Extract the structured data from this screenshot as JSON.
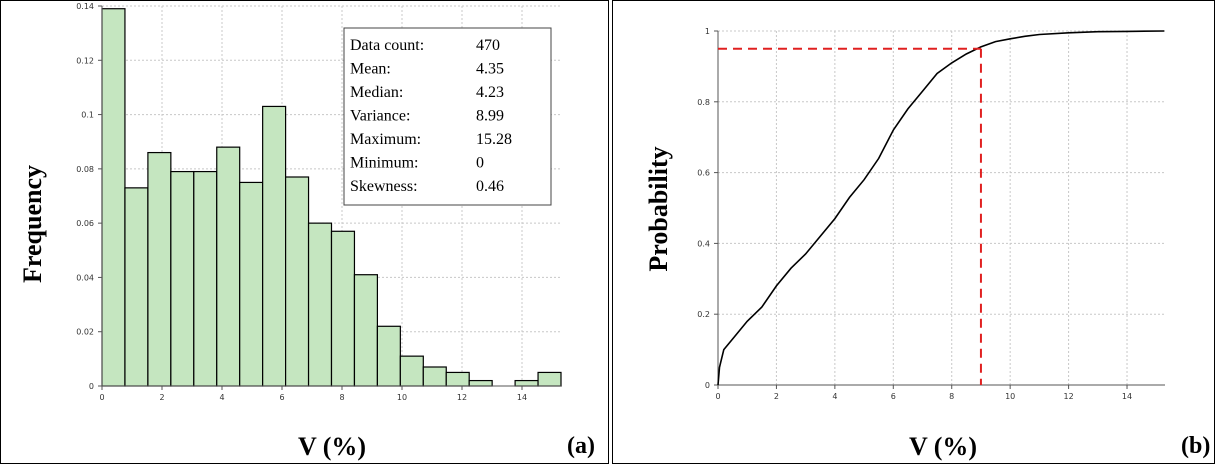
{
  "chart_data": [
    {
      "type": "bar",
      "panel_label": "(a)",
      "xlabel": "V (%)",
      "ylabel": "Frequency",
      "xlim": [
        0,
        15.3
      ],
      "ylim": [
        0,
        0.14
      ],
      "x_ticks": [
        "0",
        "2",
        "4",
        "6",
        "8",
        "10",
        "12",
        "14"
      ],
      "y_ticks": [
        "0",
        "0.02",
        "0.04",
        "0.06",
        "0.08",
        "0.1",
        "0.12",
        "0.14"
      ],
      "grid": true,
      "bin_width": 0.765,
      "bin_starts": [
        0,
        0.765,
        1.53,
        2.295,
        3.06,
        3.825,
        4.59,
        5.355,
        6.12,
        6.885,
        7.65,
        8.415,
        9.18,
        9.945,
        10.71,
        11.475,
        12.24,
        13.005,
        13.77,
        14.535
      ],
      "values": [
        0.139,
        0.073,
        0.086,
        0.079,
        0.079,
        0.088,
        0.075,
        0.103,
        0.077,
        0.06,
        0.057,
        0.041,
        0.022,
        0.011,
        0.007,
        0.005,
        0.002,
        0,
        0.002,
        0.005
      ],
      "bar_color": "#c5e6c0",
      "stats_box": {
        "position": "top-right",
        "rows": [
          {
            "label": "Data count:",
            "value": "470"
          },
          {
            "label": "Mean:",
            "value": "4.35"
          },
          {
            "label": "Median:",
            "value": "4.23"
          },
          {
            "label": "Variance:",
            "value": "8.99"
          },
          {
            "label": "Maximum:",
            "value": "15.28"
          },
          {
            "label": "Minimum:",
            "value": "0"
          },
          {
            "label": "Skewness:",
            "value": "0.46"
          }
        ]
      }
    },
    {
      "type": "line",
      "panel_label": "(b)",
      "xlabel": "V (%)",
      "ylabel": "Probability",
      "xlim": [
        0,
        15.3
      ],
      "ylim": [
        0,
        1
      ],
      "x_ticks": [
        "0",
        "2",
        "4",
        "6",
        "8",
        "10",
        "12",
        "14"
      ],
      "y_ticks": [
        "0",
        "0.2",
        "0.4",
        "0.6",
        "0.8",
        "1"
      ],
      "grid": true,
      "x": [
        0,
        0.05,
        0.2,
        0.5,
        1,
        1.5,
        2,
        2.5,
        3,
        3.5,
        4,
        4.5,
        5,
        5.5,
        6,
        6.5,
        7,
        7.5,
        8,
        8.5,
        9,
        9.5,
        10,
        10.5,
        11,
        12,
        13,
        14,
        15.28
      ],
      "y": [
        0,
        0.05,
        0.1,
        0.13,
        0.18,
        0.22,
        0.28,
        0.33,
        0.37,
        0.42,
        0.47,
        0.53,
        0.58,
        0.64,
        0.72,
        0.78,
        0.83,
        0.88,
        0.91,
        0.935,
        0.955,
        0.97,
        0.978,
        0.985,
        0.99,
        0.995,
        0.998,
        0.999,
        1
      ],
      "line_color": "#000000",
      "reference": {
        "x": 9,
        "y": 0.95,
        "color": "#e02020"
      }
    }
  ]
}
